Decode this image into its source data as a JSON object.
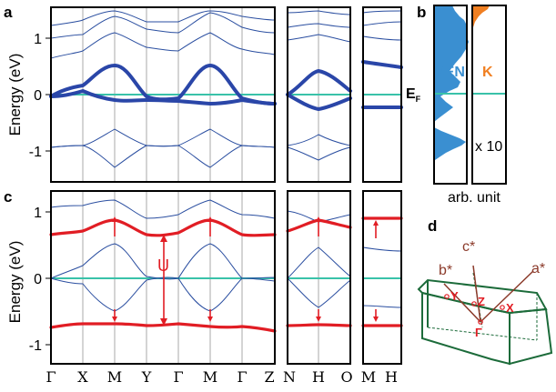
{
  "figure": {
    "panel_labels": {
      "a": "a",
      "b": "b",
      "c": "c",
      "d": "d"
    },
    "ylabel": "Energy (eV)",
    "ef_label": "E",
    "ef_sub": "F",
    "dos_xlabel": "arb. unit",
    "dos_pen_label": "PEN",
    "dos_k_label": "K",
    "dos_k_scale": "x 10",
    "u_label": "U",
    "bz_labels": {
      "a_star": "a*",
      "b_star": "b*",
      "c_star": "c*",
      "x": "X",
      "y": "Y",
      "z": "Z",
      "gamma": "Γ"
    },
    "colors": {
      "band": "#2a4ea0",
      "fermi": "#39c2a9",
      "hubbard": "#e11d24",
      "pen_dos": "#3a8fd1",
      "k_dos": "#f07f21",
      "bz": "#1c6b3a"
    }
  },
  "chart_data": [
    {
      "type": "line",
      "panel": "a",
      "ylabel": "Energy (eV)",
      "ylim": [
        -1.5,
        1.5
      ],
      "yticks": [
        "-1",
        "0",
        "1"
      ],
      "kpath": [
        "Γ",
        "X",
        "M",
        "Y",
        "Γ",
        "M",
        "Γ",
        "Z",
        "N",
        "H",
        "O",
        "M",
        "H"
      ],
      "fermi_level": 0,
      "series": [
        {
          "style": "thick",
          "x": [
            0,
            0.3,
            0.6,
            1,
            1.5,
            2,
            2.5,
            3,
            3.5,
            4,
            4.5,
            5,
            5.5,
            6,
            6.5,
            7
          ],
          "y": [
            -0.05,
            0.05,
            0.15,
            0.22,
            0.4,
            0.55,
            0.35,
            0.05,
            -0.1,
            -0.05,
            0.3,
            0.55,
            0.3,
            -0.05,
            -0.15,
            -0.18
          ]
        },
        {
          "style": "thick",
          "x": [
            0,
            0.3,
            0.6,
            1,
            1.5,
            2,
            2.5,
            3,
            3.5,
            4,
            4.5,
            5,
            5.5,
            6,
            6.5,
            7
          ],
          "y": [
            -0.08,
            -0.02,
            0.05,
            0.08,
            -0.05,
            -0.15,
            -0.12,
            -0.1,
            -0.12,
            -0.12,
            -0.15,
            -0.18,
            -0.15,
            -0.12,
            -0.2,
            -0.22
          ]
        },
        {
          "style": "thin",
          "x": [
            0,
            1,
            1.5,
            2,
            2.5,
            3,
            4,
            4.5,
            5,
            5.5,
            6,
            7
          ],
          "y": [
            -0.95,
            -1.0,
            -0.8,
            -0.6,
            -0.8,
            -0.95,
            -0.95,
            -0.75,
            -0.6,
            -0.78,
            -0.95,
            -0.97
          ]
        },
        {
          "style": "thin",
          "x": [
            0,
            1,
            1.5,
            2,
            2.5,
            3,
            4,
            4.5,
            5,
            5.5,
            6,
            7
          ],
          "y": [
            -0.95,
            -1.0,
            -1.1,
            -1.3,
            -1.1,
            -0.95,
            -0.95,
            -1.1,
            -1.3,
            -1.1,
            -0.95,
            -0.97
          ]
        },
        {
          "style": "thin",
          "x": [
            0,
            1,
            1.5,
            2,
            2.5,
            3,
            4,
            4.5,
            5,
            5.5,
            6,
            7
          ],
          "y": [
            1.05,
            0.95,
            1.2,
            1.45,
            1.2,
            1.1,
            1.05,
            1.15,
            1.35,
            1.1,
            1.0,
            0.95
          ]
        },
        {
          "style": "thin",
          "x": [
            0,
            1,
            1.5,
            2,
            2.5,
            3,
            4,
            4.5,
            5,
            5.5,
            6,
            7
          ],
          "y": [
            1.25,
            1.35,
            1.5,
            1.5,
            1.4,
            1.28,
            1.25,
            1.38,
            1.5,
            1.45,
            1.3,
            1.25
          ]
        }
      ]
    },
    {
      "type": "area",
      "panel": "b",
      "title": "",
      "xlabel": "arb. unit",
      "series": [
        {
          "name": "PEN",
          "color": "#3a8fd1"
        },
        {
          "name": "K",
          "color": "#f07f21",
          "scale": "x 10"
        }
      ]
    },
    {
      "type": "line",
      "panel": "c",
      "ylabel": "Energy (eV)",
      "ylim": [
        -1.5,
        1.5
      ],
      "yticks": [
        "-1",
        "0",
        "1"
      ],
      "kpath": [
        "Γ",
        "X",
        "M",
        "Y",
        "Γ",
        "M",
        "Γ",
        "Z",
        "N",
        "H",
        "O",
        "M",
        "H"
      ],
      "annotation": "U",
      "series": [
        {
          "style": "hubbard",
          "x": [
            0,
            0.5,
            1,
            1.5,
            2,
            2.5,
            3,
            3.5,
            4,
            4.5,
            5,
            5.5,
            6,
            6.5,
            7
          ],
          "y": [
            0.67,
            0.7,
            0.72,
            0.82,
            0.9,
            0.85,
            0.75,
            0.68,
            0.72,
            0.82,
            0.9,
            0.82,
            0.72,
            0.68,
            0.67
          ]
        },
        {
          "style": "hubbard",
          "x": [
            0,
            0.5,
            1,
            1.5,
            2,
            2.5,
            3,
            3.5,
            4,
            4.5,
            5,
            5.5,
            6,
            6.5,
            7
          ],
          "y": [
            -0.75,
            -0.72,
            -0.68,
            -0.7,
            -0.72,
            -0.72,
            -0.73,
            -0.72,
            -0.7,
            -0.72,
            -0.75,
            -0.75,
            -0.73,
            -0.74,
            -0.8
          ]
        },
        {
          "style": "thin",
          "x": [
            0,
            1,
            1.5,
            2,
            2.5,
            3,
            4,
            4.5,
            5,
            5.5,
            6,
            7
          ],
          "y": [
            0,
            0.15,
            0.35,
            0.5,
            0.3,
            0.02,
            -0.05,
            0.3,
            0.52,
            0.3,
            0,
            -0.05
          ]
        },
        {
          "style": "thin",
          "x": [
            0,
            1,
            1.5,
            2,
            2.5,
            3,
            4,
            4.5,
            5,
            5.5,
            6,
            7
          ],
          "y": [
            0,
            -0.05,
            -0.3,
            -0.5,
            -0.3,
            0,
            0.03,
            -0.3,
            -0.5,
            -0.3,
            0,
            0.02
          ]
        }
      ]
    }
  ]
}
